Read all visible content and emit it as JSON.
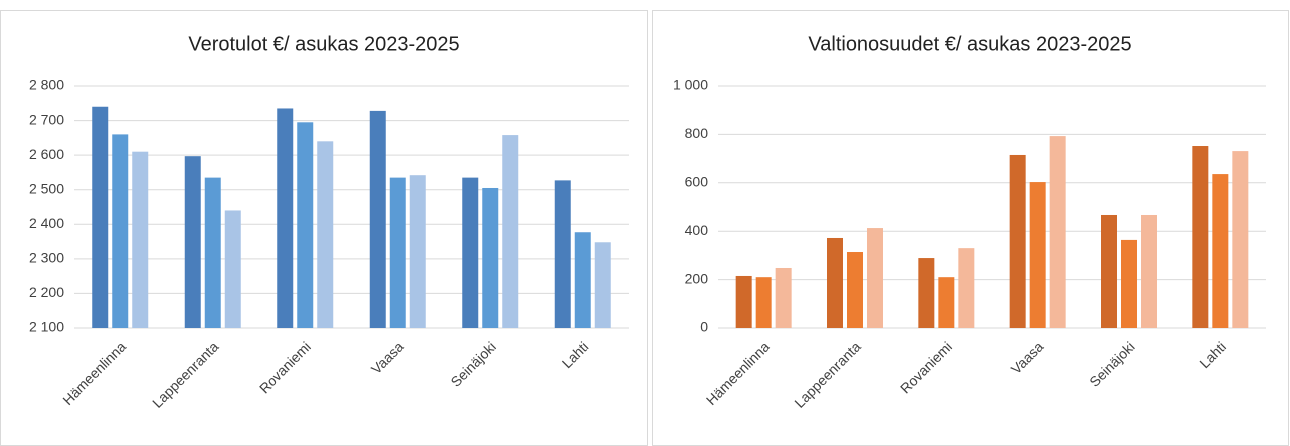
{
  "chart_data": [
    {
      "type": "bar",
      "title": "Verotulot €/ asukas 2023-2025",
      "categories": [
        "Hämeenlinna",
        "Lappeenranta",
        "Rovaniemi",
        "Vaasa",
        "Seinäjoki",
        "Lahti"
      ],
      "series": [
        {
          "color": "#4a7ebb",
          "values": [
            2740,
            2597,
            2735,
            2728,
            2535,
            2527
          ]
        },
        {
          "color": "#5b9bd5",
          "values": [
            2660,
            2535,
            2695,
            2535,
            2505,
            2377
          ]
        },
        {
          "color": "#a9c4e6",
          "values": [
            2610,
            2440,
            2640,
            2542,
            2658,
            2348
          ]
        }
      ],
      "ylim": [
        2100,
        2800
      ],
      "yticks": [
        {
          "value": 2100,
          "label": "2 100"
        },
        {
          "value": 2200,
          "label": "2 200"
        },
        {
          "value": 2300,
          "label": "2 300"
        },
        {
          "value": 2400,
          "label": "2 400"
        },
        {
          "value": 2500,
          "label": "2 500"
        },
        {
          "value": 2600,
          "label": "2 600"
        },
        {
          "value": 2700,
          "label": "2 700"
        },
        {
          "value": 2800,
          "label": "2 800"
        }
      ],
      "grid": true
    },
    {
      "type": "bar",
      "title": "Valtionosuudet €/ asukas 2023-2025",
      "categories": [
        "Hämeenlinna",
        "Lappeenranta",
        "Rovaniemi",
        "Vaasa",
        "Seinäjoki",
        "Lahti"
      ],
      "series": [
        {
          "color": "#d0692a",
          "values": [
            215,
            372,
            289,
            715,
            467,
            752
          ]
        },
        {
          "color": "#ed7d31",
          "values": [
            210,
            314,
            210,
            603,
            364,
            636
          ]
        },
        {
          "color": "#f4b89a",
          "values": [
            248,
            413,
            330,
            793,
            467,
            731
          ]
        }
      ],
      "ylim": [
        0,
        1000
      ],
      "yticks": [
        0,
        200,
        400,
        600,
        800,
        {
          "value": 1000,
          "label": "1 000"
        }
      ],
      "grid": true
    }
  ]
}
